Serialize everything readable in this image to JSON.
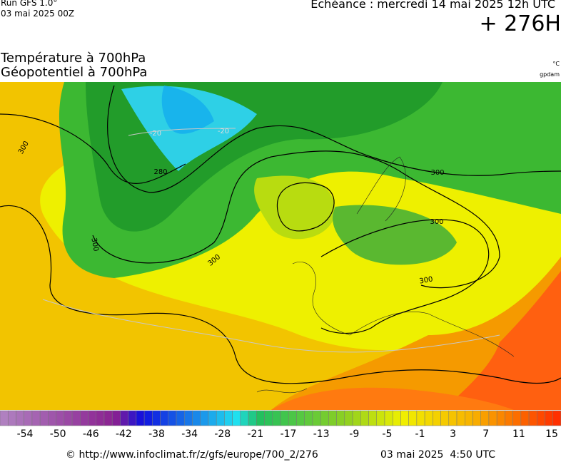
{
  "header": {
    "run": "Run GFS 1.0°",
    "run_date": "03 mai 2025 00Z",
    "forecast": "Echéance : mercredi 14 mai 2025 12h UTC",
    "lead": "+ 276H"
  },
  "titles": [
    "Température à 700hPa",
    "Géopotentiel à 700hPa"
  ],
  "units": [
    "°C",
    "gpdam"
  ],
  "map": {
    "contour_labels": [
      "300",
      "280",
      "-20",
      "-20",
      "300",
      "300",
      "300",
      "300",
      "300"
    ]
  },
  "scale": {
    "labels": [
      -54,
      -50,
      -46,
      -42,
      -38,
      -34,
      -28,
      -21,
      -17,
      -13,
      -9,
      -5,
      -1,
      3,
      7,
      11,
      15
    ]
  },
  "footer": {
    "source": "© http://www.infoclimat.fr/z/gfs/europe/700_2/276",
    "generated": "03 mai 2025  4:50 UTC"
  }
}
